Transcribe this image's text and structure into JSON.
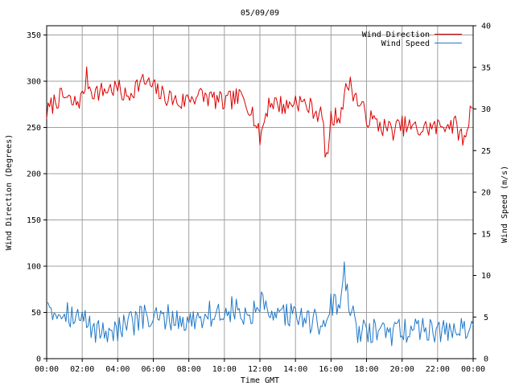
{
  "chart_data": {
    "type": "line",
    "title": "05/09/09",
    "xlabel": "Time GMT",
    "ylabel_left": "Wind Direction (Degrees)",
    "ylabel_right": "Wind Speed (m/s)",
    "xlim": [
      0,
      24
    ],
    "ylim_left": [
      0,
      360
    ],
    "ylim_right": [
      0,
      40
    ],
    "grid": true,
    "legend_position": "top-right",
    "x_tick_labels": [
      "00:00",
      "02:00",
      "04:00",
      "06:00",
      "08:00",
      "10:00",
      "12:00",
      "14:00",
      "16:00",
      "18:00",
      "20:00",
      "22:00",
      "00:00"
    ],
    "y_left_ticks": [
      0,
      50,
      100,
      150,
      200,
      250,
      300,
      350
    ],
    "y_right_ticks": [
      0,
      5,
      10,
      15,
      20,
      25,
      30,
      35,
      40
    ],
    "series": [
      {
        "name": "Wind Direction",
        "color": "#dd0000",
        "axis": "left",
        "x": [
          0,
          0.5,
          1,
          1.5,
          2,
          2.25,
          2.5,
          3,
          3.5,
          4,
          4.5,
          5,
          5.5,
          6,
          6.5,
          7,
          7.5,
          8,
          8.5,
          9,
          9.5,
          10,
          10.5,
          11,
          11.5,
          12,
          12.5,
          13,
          13.5,
          14,
          14.5,
          15,
          15.5,
          15.75,
          16,
          16.5,
          17,
          17.5,
          18,
          18.5,
          19,
          19.5,
          20,
          20.5,
          21,
          21.5,
          22,
          22.5,
          23,
          23.5,
          24
        ],
        "values": [
          265,
          280,
          283,
          275,
          282,
          305,
          290,
          288,
          292,
          292,
          282,
          295,
          300,
          293,
          285,
          282,
          276,
          282,
          285,
          283,
          280,
          276,
          281,
          282,
          272,
          238,
          278,
          276,
          272,
          280,
          275,
          270,
          262,
          212,
          258,
          265,
          300,
          278,
          262,
          255,
          250,
          247,
          252,
          250,
          247,
          250,
          250,
          255,
          252,
          235,
          282
        ]
      },
      {
        "name": "Wind Speed",
        "color": "#1f77c8",
        "axis": "right",
        "x": [
          0,
          0.25,
          0.5,
          1,
          1.5,
          2,
          2.5,
          3,
          3.5,
          4,
          4.5,
          5,
          5.5,
          6,
          6.5,
          7,
          7.5,
          8,
          8.5,
          9,
          9.5,
          10,
          10.5,
          11,
          11.5,
          12,
          12.5,
          13,
          13.5,
          14,
          14.5,
          15,
          15.5,
          16,
          16.5,
          16.75,
          17,
          17.5,
          18,
          18.5,
          19,
          19.5,
          20,
          20.5,
          21,
          21.5,
          22,
          22.5,
          23,
          23.5,
          24
        ],
        "values": [
          7.5,
          6.5,
          5.5,
          6.0,
          5.0,
          4.8,
          3.8,
          3.2,
          3.5,
          3.5,
          4.0,
          4.5,
          5.0,
          4.5,
          4.8,
          5.0,
          4.5,
          4.3,
          5.0,
          5.5,
          5.2,
          5.5,
          6.0,
          5.0,
          4.8,
          6.8,
          5.0,
          4.5,
          5.5,
          5.0,
          4.8,
          4.5,
          4.0,
          6.5,
          6.5,
          10.5,
          6.0,
          3.5,
          3.0,
          3.2,
          3.0,
          3.0,
          3.5,
          3.5,
          3.5,
          3.8,
          3.2,
          3.5,
          3.2,
          3.5,
          4.5
        ]
      }
    ]
  }
}
